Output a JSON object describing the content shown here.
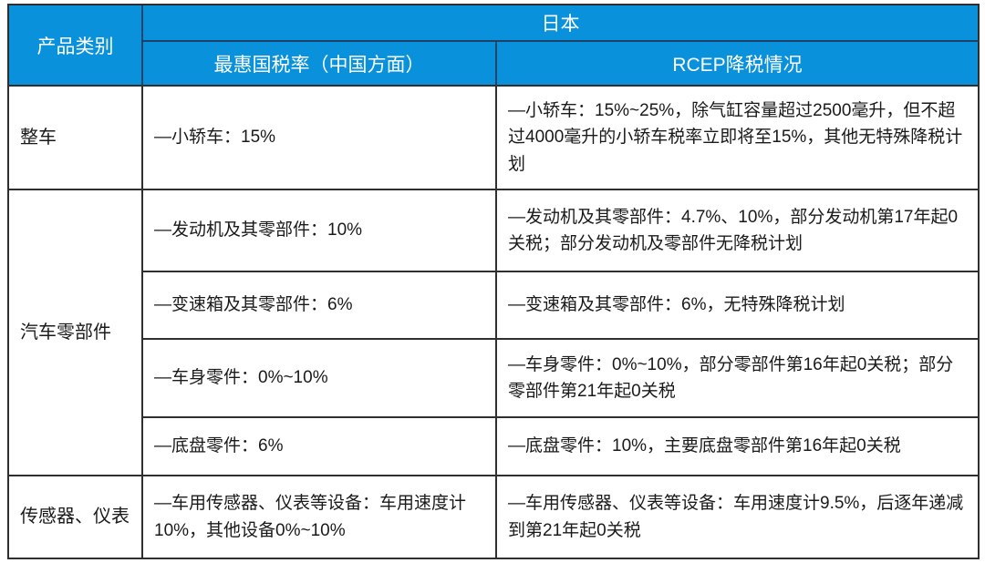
{
  "colors": {
    "header_bg": "#0991db",
    "header_divider": "#1b4269",
    "border": "#2f2f2f",
    "body_text": "#1a1a1a",
    "header_text": "#ffffff"
  },
  "table": {
    "header": {
      "category": "产品类别",
      "country": "日本",
      "col_mfn": "最惠国税率（中国方面）",
      "col_rcep": "RCEP降税情况"
    },
    "rows": [
      {
        "category": "整车",
        "mfn": "—小轿车：15%",
        "rcep": "—小轿车：15%~25%，除气缸容量超过2500毫升，但不超过4000毫升的小轿车税率立即将至15%，其他无特殊降税计划"
      },
      {
        "category": "汽车零部件",
        "mfn": "—发动机及其零部件：10%",
        "rcep": "—发动机及其零部件：4.7%、10%，部分发动机第17年起0关税；部分发动机及零部件无降税计划"
      },
      {
        "mfn": "—变速箱及其零部件：6%",
        "rcep": "—变速箱及其零部件：6%，无特殊降税计划"
      },
      {
        "mfn": "—车身零件：0%~10%",
        "rcep": "—车身零件：0%~10%，部分零部件第16年起0关税；部分零部件第21年起0关税"
      },
      {
        "mfn": "—底盘零件：6%",
        "rcep": "—底盘零件：10%，主要底盘零部件第16年起0关税"
      },
      {
        "category": "传感器、仪表",
        "mfn": "—车用传感器、仪表等设备：车用速度计10%，其他设备0%~10%",
        "rcep": "—车用传感器、仪表等设备：车用速度计9.5%，后逐年递减到第21年起0关税"
      }
    ]
  }
}
